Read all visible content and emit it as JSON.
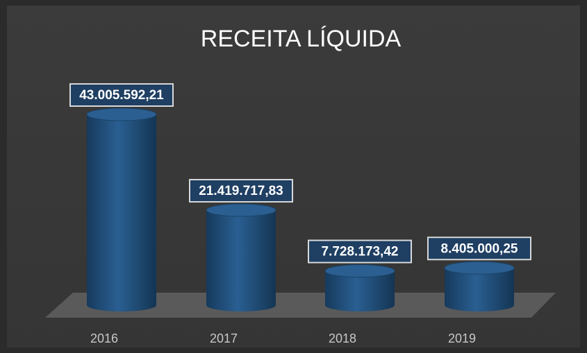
{
  "chart_data": {
    "type": "bar",
    "title": "RECEITA LÍQUIDA",
    "categories": [
      "2016",
      "2017",
      "2018",
      "2019"
    ],
    "values": [
      43005592.21,
      21419717.83,
      7728173.42,
      8405000.25
    ],
    "value_labels": [
      "43.005.592,21",
      "21.419.717,83",
      "7.728.173,42",
      "8.405.000,25"
    ],
    "color": "#1f4e79"
  }
}
